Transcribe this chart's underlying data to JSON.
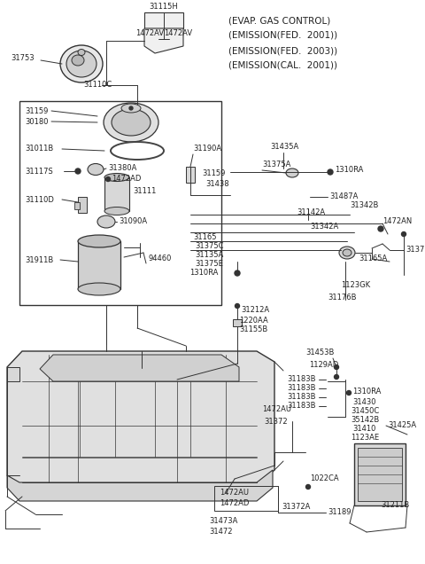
{
  "bg_color": "#ffffff",
  "text_color": "#222222",
  "line_color": "#333333",
  "header_lines": [
    "(EVAP. GAS CONTROL)",
    "(EMISSION(FED.  2001))",
    "(EMISSION(FED.  2003))",
    "(EMISSION(CAL.  2001))"
  ],
  "fig_width": 4.8,
  "fig_height": 6.36,
  "dpi": 100
}
